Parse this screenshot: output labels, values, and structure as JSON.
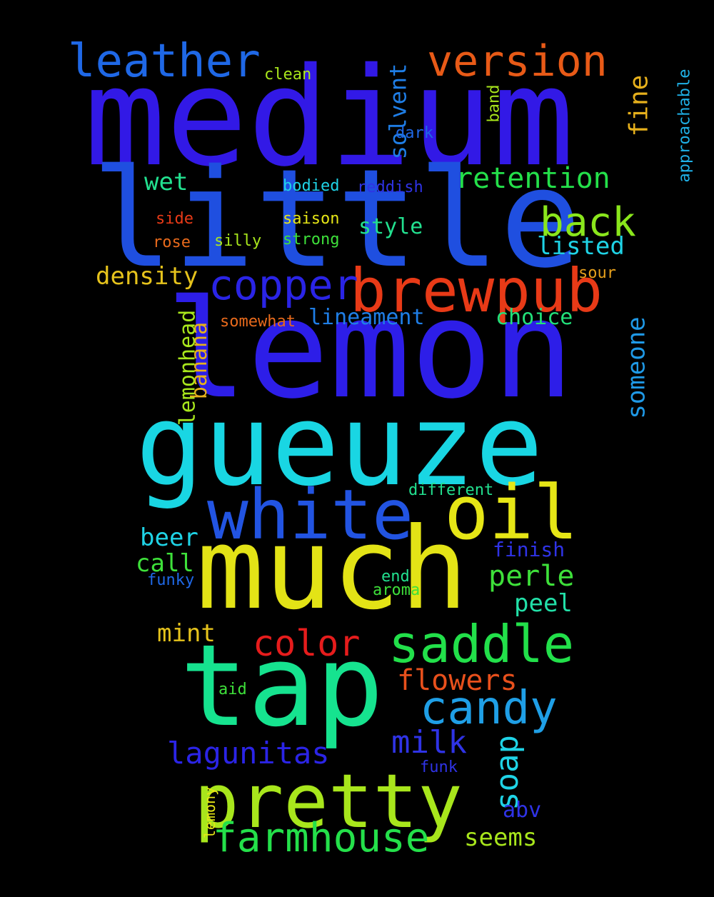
{
  "background": "#000000",
  "words": [
    {
      "text": "medium",
      "color": "#3219e6"
    },
    {
      "text": "little",
      "color": "#1f4fe0"
    },
    {
      "text": "lemon",
      "color": "#2d1ee8"
    },
    {
      "text": "gueuze",
      "color": "#19d6e3"
    },
    {
      "text": "much",
      "color": "#e3e316"
    },
    {
      "text": "tap",
      "color": "#16e38f"
    },
    {
      "text": "pretty",
      "color": "#a8e61c"
    },
    {
      "text": "white",
      "color": "#2254e2"
    },
    {
      "text": "oil",
      "color": "#e6e616"
    },
    {
      "text": "brewpub",
      "color": "#e83a17"
    },
    {
      "text": "saddle",
      "color": "#22e04a"
    },
    {
      "text": "leather",
      "color": "#1f68e6"
    },
    {
      "text": "version",
      "color": "#e85a17"
    },
    {
      "text": "copper",
      "color": "#2a24e6"
    },
    {
      "text": "candy",
      "color": "#1f9fe6"
    },
    {
      "text": "farmhouse",
      "color": "#24e04a"
    },
    {
      "text": "back",
      "color": "#8ae61c"
    },
    {
      "text": "retention",
      "color": "#24e04a"
    },
    {
      "text": "color",
      "color": "#e61c1c"
    },
    {
      "text": "lagunitas",
      "color": "#2b24e6"
    },
    {
      "text": "milk",
      "color": "#2f33e6"
    },
    {
      "text": "flowers",
      "color": "#e8501c"
    },
    {
      "text": "perle",
      "color": "#3ee03a"
    },
    {
      "text": "soap",
      "color": "#1fd3e6"
    },
    {
      "text": "density",
      "color": "#e6c31c"
    },
    {
      "text": "lineament",
      "color": "#1f7ee6"
    },
    {
      "text": "someone",
      "color": "#1f99e6"
    },
    {
      "text": "listed",
      "color": "#1fd3e6"
    },
    {
      "text": "choice",
      "color": "#22e07a"
    },
    {
      "text": "style",
      "color": "#22e08f"
    },
    {
      "text": "wet",
      "color": "#22e08f"
    },
    {
      "text": "beer",
      "color": "#1fd3e6"
    },
    {
      "text": "call",
      "color": "#3ee03a"
    },
    {
      "text": "mint",
      "color": "#e6c31c"
    },
    {
      "text": "peel",
      "color": "#22e0a8"
    },
    {
      "text": "finish",
      "color": "#2f33e6"
    },
    {
      "text": "seems",
      "color": "#a8e61c"
    },
    {
      "text": "abv",
      "color": "#2f33e6"
    },
    {
      "text": "solvent",
      "color": "#1f7ee6"
    },
    {
      "text": "fine",
      "color": "#e6b01c"
    },
    {
      "text": "banana",
      "color": "#e6b01c"
    },
    {
      "text": "lemonhead",
      "color": "#a8e61c"
    },
    {
      "text": "approachable",
      "color": "#1fb0e6"
    },
    {
      "text": "clean",
      "color": "#a8e61c"
    },
    {
      "text": "dark",
      "color": "#1f68e6"
    },
    {
      "text": "band",
      "color": "#a8e61c"
    },
    {
      "text": "bodied",
      "color": "#1fd3e6"
    },
    {
      "text": "reddish",
      "color": "#2f33e6"
    },
    {
      "text": "side",
      "color": "#e83a17"
    },
    {
      "text": "saison",
      "color": "#e6e616"
    },
    {
      "text": "rose",
      "color": "#e86a1c"
    },
    {
      "text": "silly",
      "color": "#a8e61c"
    },
    {
      "text": "strong",
      "color": "#3ee03a"
    },
    {
      "text": "sour",
      "color": "#e6a01c"
    },
    {
      "text": "somewhat",
      "color": "#e86a1c"
    },
    {
      "text": "different",
      "color": "#22e08f"
    },
    {
      "text": "funky",
      "color": "#1f68e6"
    },
    {
      "text": "end",
      "color": "#22e08f"
    },
    {
      "text": "aroma",
      "color": "#3ee03a"
    },
    {
      "text": "aid",
      "color": "#3ee03a"
    },
    {
      "text": "funk",
      "color": "#2f33e6"
    },
    {
      "text": "lemony",
      "color": "#e6e616"
    }
  ]
}
